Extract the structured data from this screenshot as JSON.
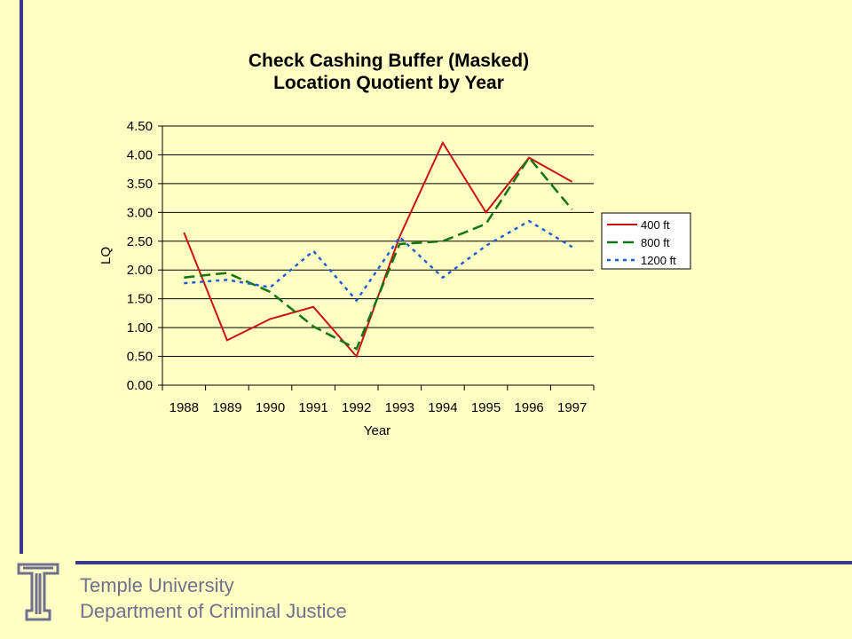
{
  "footer": {
    "institution": "Temple University",
    "department": "Department of Criminal Justice"
  },
  "colors": {
    "background": "#FFFFC4",
    "accent_bar": "#3A3A8C",
    "footer_text": "#6F6F90",
    "series_400": "#CC1111",
    "series_800": "#117711",
    "series_1200": "#1E5FD8"
  },
  "logo": {
    "icon": "temple-t-logo-icon"
  },
  "chart_data": {
    "type": "line",
    "title": "Check Cashing Buffer (Masked)",
    "subtitle": "Location Quotient by Year",
    "xlabel": "Year",
    "ylabel": "LQ",
    "ylim": [
      0,
      4.5
    ],
    "yticks": [
      "0.00",
      "0.50",
      "1.00",
      "1.50",
      "2.00",
      "2.50",
      "3.00",
      "3.50",
      "4.00",
      "4.50"
    ],
    "grid": "horizontal",
    "legend": "right",
    "categories": [
      "1988",
      "1989",
      "1990",
      "1991",
      "1992",
      "1993",
      "1994",
      "1995",
      "1996",
      "1997"
    ],
    "series": [
      {
        "name": "400 ft",
        "color": "#CC1111",
        "dash": "solid",
        "values": [
          2.65,
          0.78,
          1.15,
          1.36,
          0.5,
          2.58,
          4.21,
          3.0,
          3.95,
          3.53
        ]
      },
      {
        "name": "800 ft",
        "color": "#117711",
        "dash": "long",
        "values": [
          1.87,
          1.95,
          1.62,
          1.02,
          0.63,
          2.45,
          2.5,
          2.8,
          3.95,
          3.05
        ]
      },
      {
        "name": "1200 ft",
        "color": "#1E5FD8",
        "dash": "short",
        "values": [
          1.77,
          1.83,
          1.7,
          2.33,
          1.47,
          2.57,
          1.87,
          2.42,
          2.85,
          2.4
        ]
      }
    ]
  }
}
